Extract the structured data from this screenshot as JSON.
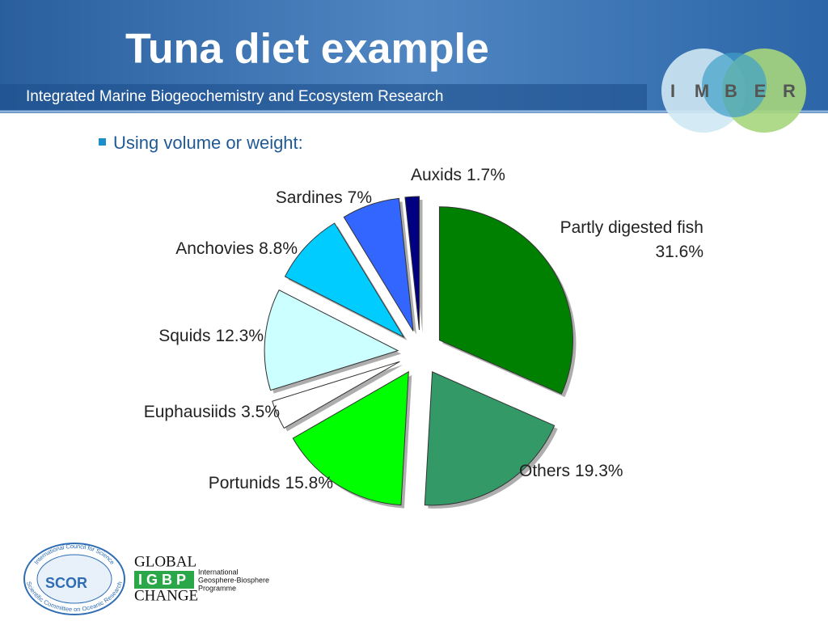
{
  "header": {
    "title": "Tuna diet example",
    "subtitle": "Integrated Marine Biogeochemistry and Ecosystem Research",
    "logo": [
      "I",
      "M",
      "B",
      "E",
      "R"
    ]
  },
  "bullet": "Using volume or weight:",
  "chart_data": {
    "type": "pie",
    "categories": [
      "Partly digested fish",
      "Others",
      "Portunids",
      "Euphausiids",
      "Squids",
      "Anchovies",
      "Sardines",
      "Auxids"
    ],
    "values": [
      31.6,
      19.3,
      15.8,
      3.5,
      12.3,
      8.8,
      7,
      1.7
    ],
    "value_labels": [
      "31.6%",
      "19.3%",
      "15.8%",
      "3.5%",
      "12.3%",
      "8.8%",
      "7%",
      "1.7%"
    ],
    "colors": [
      "#008000",
      "#339966",
      "#00ff00",
      "#ffffff",
      "#ccffff",
      "#00ccff",
      "#3366ff",
      "#000080"
    ]
  },
  "footer": {
    "scor": {
      "top": "International Council for Science",
      "name": "SCOR",
      "bottom": "Scientific Committee on Oceanic Research"
    },
    "igbp": {
      "line1": "GLOBAL",
      "acronym": "IGBP",
      "line3": "CHANGE",
      "desc": [
        "International",
        "Geosphere-Biosphere",
        "Programme"
      ]
    }
  }
}
